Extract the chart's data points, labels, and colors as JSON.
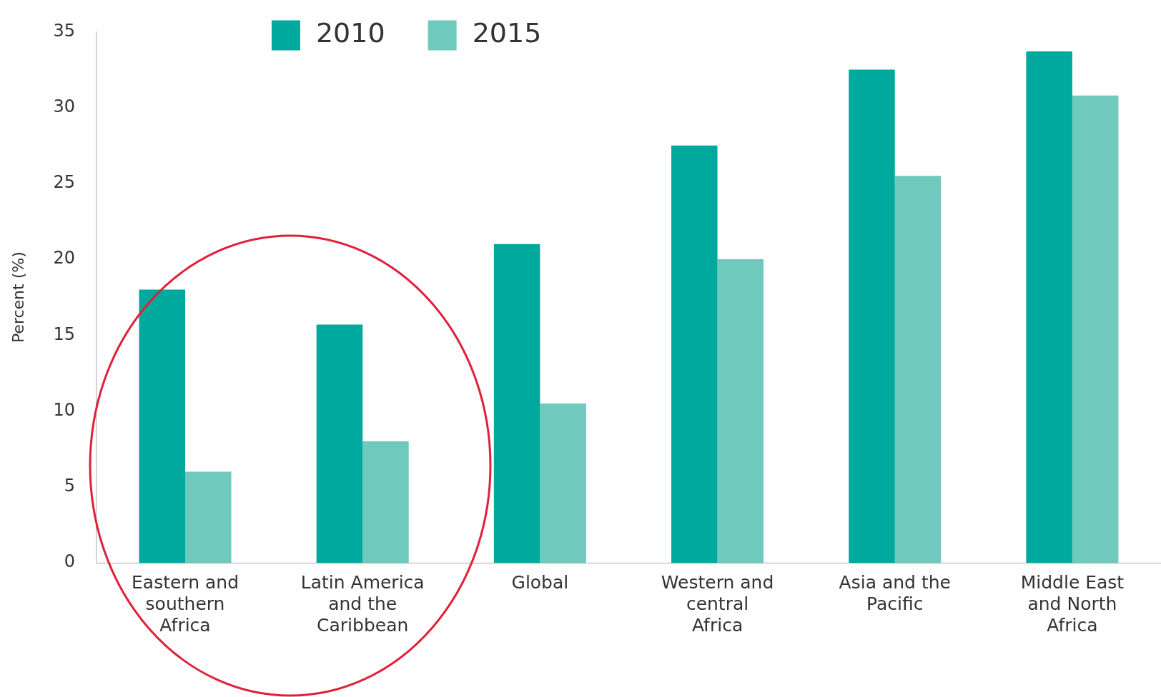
{
  "chart_data": {
    "type": "bar",
    "ylabel": "Percent (%)",
    "categories": [
      "Eastern and southern Africa",
      "Latin America and the Caribbean",
      "Global",
      "Western and central Africa",
      "Asia and the Pacific",
      "Middle East and North Africa"
    ],
    "series": [
      {
        "name": "2010",
        "color": "#00a99d",
        "values": [
          18,
          15.7,
          21,
          27.5,
          32.5,
          33.7
        ]
      },
      {
        "name": "2015",
        "color": "#6fc9bd",
        "values": [
          6,
          8,
          10.5,
          20,
          25.5,
          30.8
        ]
      }
    ],
    "ylim": [
      0,
      35
    ],
    "yticks": [
      0,
      5,
      10,
      15,
      20,
      25,
      30,
      35
    ],
    "grid": false,
    "legend": "top left"
  }
}
